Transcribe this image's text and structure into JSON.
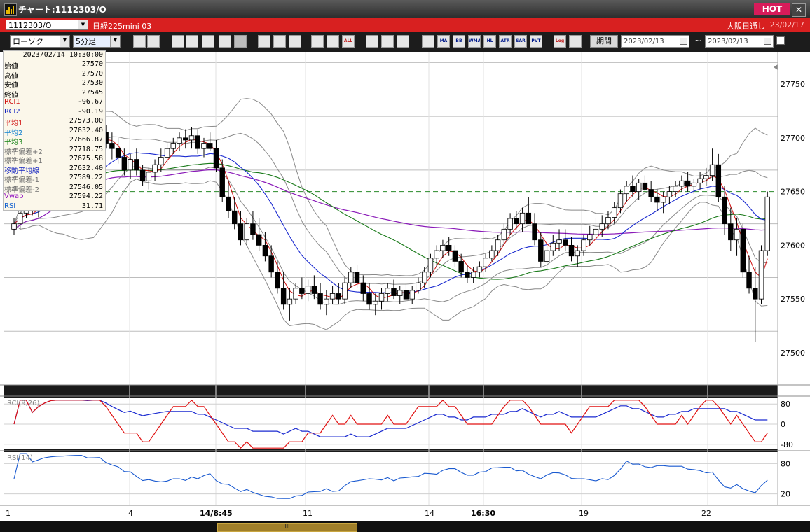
{
  "window": {
    "title": "チャート:1112303/O",
    "hot_label": "HOT",
    "close_label": "✕"
  },
  "instrument_bar": {
    "symbol": "1112303/O",
    "name": "日経225mini 03",
    "session": "大阪日通し",
    "date": "23/02/17"
  },
  "toolbar": {
    "chart_type": "ローソク",
    "interval": "5分足",
    "icons": [
      "zoom-icon",
      "crosshair-icon",
      "download-icon",
      "search-icon",
      "chart-icon",
      "flag-icon",
      "disabled-icon",
      "pen-icon",
      "cursor-icon",
      "undo-icon",
      "marker-icon",
      "marker2-icon",
      "all-icon",
      "gear-icon",
      "wrench-icon",
      "palette-icon",
      "grid-icon",
      "ma-icon",
      "bb-icon",
      "wma-icon",
      "hl-icon",
      "atr-icon",
      "sar-icon",
      "pvt-icon",
      "log-icon",
      "export-icon"
    ],
    "icon_labels": [
      "",
      "",
      "",
      "",
      "",
      "",
      "",
      "",
      "",
      "",
      "",
      "",
      "ALL",
      "",
      "",
      "",
      "",
      "MA",
      "BB",
      "WMA",
      "HL",
      "ATR",
      "SAR",
      "PVT",
      "Log",
      ""
    ],
    "period_label": "期間",
    "date_from": "2023/02/13",
    "date_to": "2023/02/13",
    "range_sep": "~"
  },
  "info_panel": {
    "timestamp": "2023/02/14 10:30:00",
    "rows": [
      {
        "label": "始値",
        "value": "27570",
        "color": "#000000"
      },
      {
        "label": "高値",
        "value": "27570",
        "color": "#000000"
      },
      {
        "label": "安値",
        "value": "27530",
        "color": "#000000"
      },
      {
        "label": "終値",
        "value": "27545",
        "color": "#000000"
      },
      {
        "label": "RCI1",
        "value": "-96.67",
        "color": "#d01010"
      },
      {
        "label": "RCI2",
        "value": "-90.19",
        "color": "#1020c0"
      },
      {
        "label": "平均1",
        "value": "27573.00",
        "color": "#d01010"
      },
      {
        "label": "平均2",
        "value": "27632.40",
        "color": "#1080d0"
      },
      {
        "label": "平均3",
        "value": "27666.87",
        "color": "#108010"
      },
      {
        "label": "標準偏差+2",
        "value": "27718.75",
        "color": "#707070"
      },
      {
        "label": "標準偏差+1",
        "value": "27675.58",
        "color": "#707070"
      },
      {
        "label": "移動平均線",
        "value": "27632.40",
        "color": "#1020c0"
      },
      {
        "label": "標準偏差-1",
        "value": "27589.22",
        "color": "#707070"
      },
      {
        "label": "標準偏差-2",
        "value": "27546.05",
        "color": "#707070"
      },
      {
        "label": "Vwap",
        "value": "27594.22",
        "color": "#9010c0"
      },
      {
        "label": "RSI",
        "value": "31.71",
        "color": "#1060d0"
      }
    ]
  },
  "chart_data": {
    "type": "candlestick",
    "title": "",
    "price_axis": {
      "ticks": [
        27500,
        27550,
        27600,
        27650,
        27700,
        27750
      ],
      "range": [
        27470,
        27780
      ]
    },
    "x_tick_labels": [
      "1",
      "4",
      "14/8:45",
      "11",
      "14",
      "16:30",
      "19",
      "22"
    ],
    "dashed_level": 27650,
    "candles": [
      [
        27615,
        27625,
        27610,
        27620
      ],
      [
        27620,
        27635,
        27615,
        27630
      ],
      [
        27630,
        27640,
        27625,
        27635
      ],
      [
        27635,
        27645,
        27628,
        27632
      ],
      [
        27632,
        27642,
        27626,
        27638
      ],
      [
        27638,
        27655,
        27632,
        27650
      ],
      [
        27650,
        27665,
        27645,
        27660
      ],
      [
        27660,
        27675,
        27652,
        27668
      ],
      [
        27668,
        27680,
        27660,
        27672
      ],
      [
        27672,
        27690,
        27665,
        27685
      ],
      [
        27685,
        27700,
        27678,
        27695
      ],
      [
        27695,
        27710,
        27688,
        27700
      ],
      [
        27700,
        27712,
        27690,
        27695
      ],
      [
        27695,
        27705,
        27685,
        27700
      ],
      [
        27700,
        27715,
        27695,
        27705
      ],
      [
        27705,
        27712,
        27690,
        27695
      ],
      [
        27695,
        27705,
        27680,
        27690
      ],
      [
        27690,
        27700,
        27676,
        27682
      ],
      [
        27682,
        27690,
        27665,
        27670
      ],
      [
        27670,
        27685,
        27662,
        27680
      ],
      [
        27680,
        27690,
        27665,
        27670
      ],
      [
        27670,
        27675,
        27655,
        27660
      ],
      [
        27660,
        27672,
        27652,
        27668
      ],
      [
        27668,
        27680,
        27660,
        27675
      ],
      [
        27675,
        27690,
        27668,
        27682
      ],
      [
        27682,
        27695,
        27676,
        27690
      ],
      [
        27690,
        27700,
        27685,
        27695
      ],
      [
        27695,
        27705,
        27688,
        27700
      ],
      [
        27700,
        27708,
        27690,
        27698
      ],
      [
        27698,
        27710,
        27690,
        27702
      ],
      [
        27702,
        27708,
        27685,
        27690
      ],
      [
        27690,
        27700,
        27682,
        27695
      ],
      [
        27695,
        27705,
        27688,
        27690
      ],
      [
        27690,
        27698,
        27668,
        27672
      ],
      [
        27672,
        27680,
        27640,
        27645
      ],
      [
        27645,
        27660,
        27625,
        27632
      ],
      [
        27632,
        27645,
        27615,
        27620
      ],
      [
        27620,
        27632,
        27600,
        27605
      ],
      [
        27605,
        27625,
        27600,
        27620
      ],
      [
        27620,
        27632,
        27605,
        27610
      ],
      [
        27610,
        27625,
        27595,
        27600
      ],
      [
        27600,
        27612,
        27585,
        27590
      ],
      [
        27590,
        27600,
        27570,
        27575
      ],
      [
        27575,
        27585,
        27555,
        27560
      ],
      [
        27560,
        27575,
        27540,
        27545
      ],
      [
        27545,
        27560,
        27530,
        27550
      ],
      [
        27550,
        27565,
        27545,
        27560
      ],
      [
        27560,
        27570,
        27550,
        27555
      ],
      [
        27555,
        27568,
        27548,
        27562
      ],
      [
        27562,
        27572,
        27550,
        27555
      ],
      [
        27555,
        27565,
        27540,
        27545
      ],
      [
        27545,
        27558,
        27535,
        27550
      ],
      [
        27550,
        27562,
        27545,
        27555
      ],
      [
        27555,
        27565,
        27545,
        27550
      ],
      [
        27550,
        27570,
        27545,
        27565
      ],
      [
        27565,
        27580,
        27560,
        27575
      ],
      [
        27575,
        27582,
        27560,
        27565
      ],
      [
        27565,
        27572,
        27548,
        27555
      ],
      [
        27555,
        27565,
        27540,
        27545
      ],
      [
        27545,
        27555,
        27535,
        27548
      ],
      [
        27548,
        27560,
        27540,
        27555
      ],
      [
        27555,
        27565,
        27548,
        27560
      ],
      [
        27560,
        27568,
        27550,
        27553
      ],
      [
        27553,
        27562,
        27545,
        27558
      ],
      [
        27558,
        27565,
        27548,
        27550
      ],
      [
        27550,
        27562,
        27545,
        27558
      ],
      [
        27558,
        27570,
        27555,
        27565
      ],
      [
        27565,
        27580,
        27560,
        27575
      ],
      [
        27575,
        27592,
        27570,
        27588
      ],
      [
        27588,
        27600,
        27580,
        27595
      ],
      [
        27595,
        27605,
        27588,
        27600
      ],
      [
        27600,
        27608,
        27590,
        27595
      ],
      [
        27595,
        27600,
        27580,
        27585
      ],
      [
        27585,
        27592,
        27570,
        27575
      ],
      [
        27575,
        27582,
        27565,
        27570
      ],
      [
        27570,
        27580,
        27565,
        27575
      ],
      [
        27575,
        27585,
        27570,
        27580
      ],
      [
        27580,
        27592,
        27575,
        27588
      ],
      [
        27588,
        27600,
        27585,
        27595
      ],
      [
        27595,
        27610,
        27590,
        27605
      ],
      [
        27605,
        27620,
        27600,
        27615
      ],
      [
        27615,
        27630,
        27610,
        27625
      ],
      [
        27625,
        27632,
        27615,
        27620
      ],
      [
        27620,
        27635,
        27612,
        27630
      ],
      [
        27630,
        27645,
        27622,
        27620
      ],
      [
        27620,
        27630,
        27600,
        27605
      ],
      [
        27605,
        27612,
        27580,
        27585
      ],
      [
        27585,
        27600,
        27575,
        27595
      ],
      [
        27595,
        27610,
        27590,
        27602
      ],
      [
        27602,
        27615,
        27595,
        27605
      ],
      [
        27605,
        27615,
        27595,
        27600
      ],
      [
        27600,
        27608,
        27585,
        27590
      ],
      [
        27590,
        27600,
        27580,
        27595
      ],
      [
        27595,
        27610,
        27590,
        27605
      ],
      [
        27605,
        27618,
        27600,
        27610
      ],
      [
        27610,
        27625,
        27605,
        27615
      ],
      [
        27615,
        27628,
        27608,
        27620
      ],
      [
        27620,
        27632,
        27615,
        27626
      ],
      [
        27626,
        27640,
        27620,
        27635
      ],
      [
        27635,
        27652,
        27630,
        27648
      ],
      [
        27648,
        27660,
        27640,
        27655
      ],
      [
        27655,
        27665,
        27645,
        27650
      ],
      [
        27650,
        27662,
        27642,
        27658
      ],
      [
        27658,
        27665,
        27648,
        27652
      ],
      [
        27652,
        27660,
        27640,
        27645
      ],
      [
        27645,
        27652,
        27632,
        27640
      ],
      [
        27640,
        27650,
        27630,
        27645
      ],
      [
        27645,
        27655,
        27638,
        27650
      ],
      [
        27650,
        27660,
        27645,
        27655
      ],
      [
        27655,
        27665,
        27650,
        27660
      ],
      [
        27660,
        27668,
        27650,
        27655
      ],
      [
        27655,
        27662,
        27648,
        27658
      ],
      [
        27658,
        27668,
        27652,
        27662
      ],
      [
        27662,
        27672,
        27655,
        27665
      ],
      [
        27665,
        27690,
        27660,
        27675
      ],
      [
        27675,
        27685,
        27640,
        27645
      ],
      [
        27645,
        27655,
        27610,
        27620
      ],
      [
        27620,
        27635,
        27595,
        27605
      ],
      [
        27605,
        27625,
        27590,
        27615
      ],
      [
        27615,
        27620,
        27570,
        27575
      ],
      [
        27575,
        27590,
        27555,
        27560
      ],
      [
        27560,
        27580,
        27510,
        27550
      ],
      [
        27550,
        27600,
        27545,
        27595
      ],
      [
        27595,
        27650,
        27590,
        27645
      ]
    ],
    "rci_axis": {
      "ticks": [
        80,
        0,
        -80
      ],
      "range": [
        -100,
        100
      ]
    },
    "rsi_axis": {
      "ticks": [
        80,
        20
      ],
      "range": [
        0,
        100
      ]
    },
    "panel_labels": {
      "rci": "RCI(9,26)",
      "rsi": "RSI(14)"
    }
  },
  "bottom_bar": {
    "thumb_label": "III"
  }
}
